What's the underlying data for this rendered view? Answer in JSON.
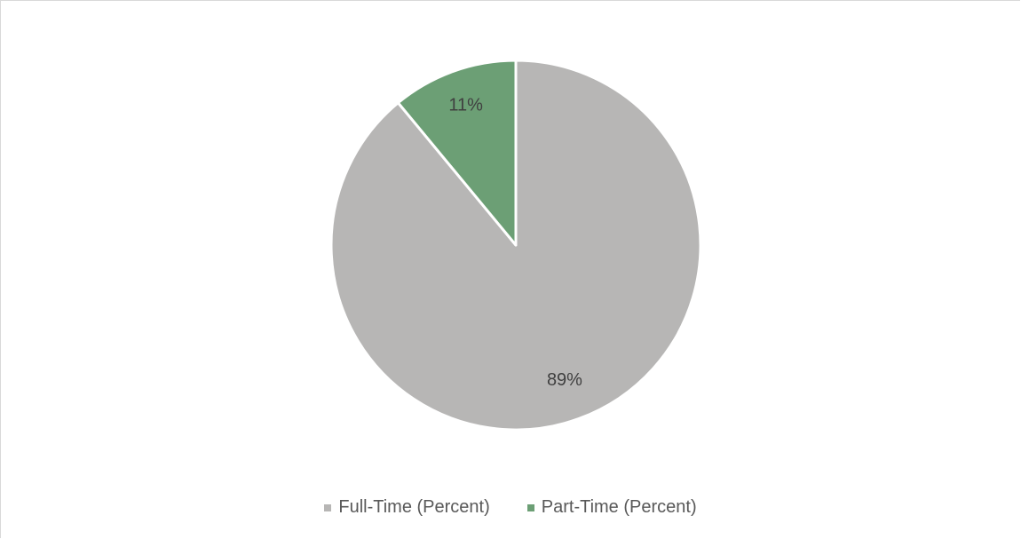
{
  "chart_data": {
    "type": "pie",
    "title": "",
    "slices": [
      {
        "label": "Full-Time (Percent)",
        "value": 89,
        "color": "#b7b6b5",
        "data_label": "89%"
      },
      {
        "label": "Part-Time (Percent)",
        "value": 11,
        "color": "#6c9f75",
        "data_label": "11%"
      }
    ],
    "start_angle_deg": 0,
    "direction": "clockwise",
    "legend": {
      "position": "bottom",
      "items": [
        "Full-Time (Percent)",
        "Part-Time (Percent)"
      ]
    }
  }
}
